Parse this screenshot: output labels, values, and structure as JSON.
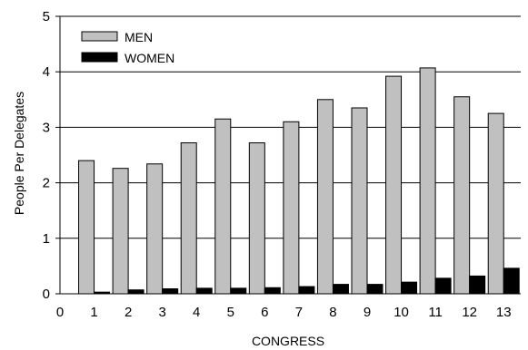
{
  "chart_data": {
    "type": "bar",
    "xlabel": "CONGRESS",
    "ylabel": "People Per Delegates",
    "categories": [
      "1",
      "2",
      "3",
      "4",
      "5",
      "6",
      "7",
      "8",
      "9",
      "10",
      "11",
      "12",
      "13"
    ],
    "x_zero_label": "0",
    "ylim": [
      0,
      5
    ],
    "yticks": [
      "0",
      "1",
      "2",
      "3",
      "4",
      "5"
    ],
    "grid": "horizontal",
    "legend_position": "top-left",
    "series": [
      {
        "name": "MEN",
        "color": "#c0c0c0",
        "values": [
          2.4,
          2.26,
          2.34,
          2.72,
          3.15,
          2.72,
          3.1,
          3.5,
          3.35,
          3.92,
          4.07,
          3.55,
          3.25
        ]
      },
      {
        "name": "WOMEN",
        "color": "#000000",
        "values": [
          0.03,
          0.07,
          0.09,
          0.1,
          0.1,
          0.11,
          0.13,
          0.17,
          0.17,
          0.21,
          0.28,
          0.32,
          0.46
        ]
      }
    ]
  }
}
